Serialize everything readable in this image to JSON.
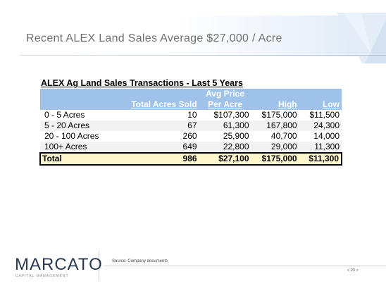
{
  "header": {
    "title": "Recent ALEX Land Sales Average $27,000 / Acre"
  },
  "table": {
    "caption": "ALEX Ag Land Sales Transactions - Last 5 Years",
    "header_top": {
      "price": "Avg Price"
    },
    "columns": [
      "",
      "Total Acres Sold",
      "Per Acre",
      "High",
      "Low"
    ],
    "rows": [
      {
        "label": "0 - 5 Acres",
        "acres": "10",
        "per_acre": "$107,300",
        "high": "$175,000",
        "low": "$11,500"
      },
      {
        "label": "5 - 20 Acres",
        "acres": "67",
        "per_acre": "61,300",
        "high": "167,800",
        "low": "24,300"
      },
      {
        "label": "20 - 100 Acres",
        "acres": "260",
        "per_acre": "25,900",
        "high": "40,700",
        "low": "14,000"
      },
      {
        "label": "100+ Acres",
        "acres": "649",
        "per_acre": "22,800",
        "high": "29,000",
        "low": "11,300"
      }
    ],
    "total": {
      "label": "Total",
      "acres": "986",
      "per_acre": "$27,100",
      "high": "$175,000",
      "low": "$11,300"
    }
  },
  "footer": {
    "logo": "MARCATO",
    "logo_sub": "CAPITAL MANAGEMENT",
    "source": "Source: Company documents",
    "page": "< 23 >"
  },
  "colors": {
    "header_fill": "#9ec2ea",
    "total_fill": "#fff6cc",
    "shade_fill": "#f2f2f2"
  }
}
